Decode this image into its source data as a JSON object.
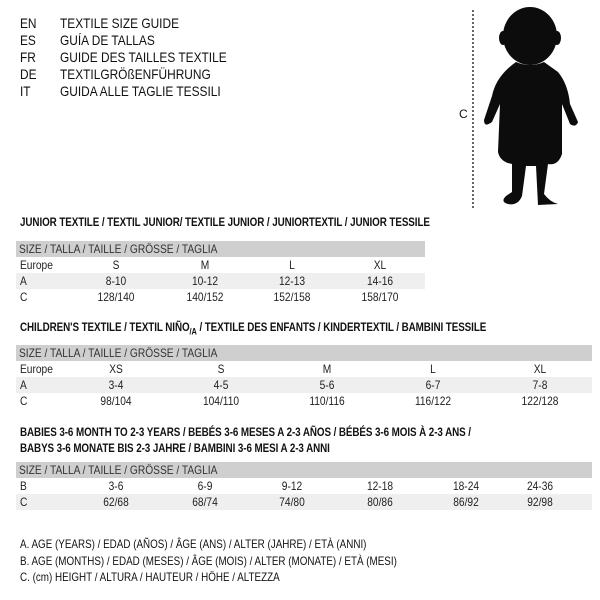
{
  "title_lines": [
    {
      "code": "EN",
      "text": "TEXTILE SIZE GUIDE"
    },
    {
      "code": "ES",
      "text": "GUÍA DE TALLAS"
    },
    {
      "code": "FR",
      "text": "GUIDE DES TAILLES TEXTILE"
    },
    {
      "code": "DE",
      "text": "TEXTILGRÖßENFÜHRUNG"
    },
    {
      "code": "IT",
      "text": "GUIDA ALLE TAGLIE TESSILI"
    }
  ],
  "figure": {
    "label": "C",
    "icon": "child-silhouette-icon"
  },
  "size_header": "SIZE / TALLA / TAILLE / GRÖSSE / TAGLIA",
  "junior": {
    "title": "JUNIOR TEXTILE / TEXTIL JUNIOR/ TEXTILE JUNIOR / JUNIORTEXTIL / JUNIOR TESSILE",
    "rows": [
      {
        "label": "Europe",
        "values": [
          "S",
          "M",
          "L",
          "XL"
        ]
      },
      {
        "label": "A",
        "values": [
          "8-10",
          "10-12",
          "12-13",
          "14-16"
        ]
      },
      {
        "label": "C",
        "values": [
          "128/140",
          "140/152",
          "152/158",
          "158/170"
        ]
      }
    ]
  },
  "children": {
    "title_a": "CHILDREN'S TEXTILE / TEXTIL NIÑO",
    "title_sub": "/A",
    "title_b": " / TEXTILE DES ENFANTS / KINDERTEXTIL / BAMBINI TESSILE",
    "rows": [
      {
        "label": "Europe",
        "values": [
          "XS",
          "S",
          "M",
          "L",
          "XL"
        ]
      },
      {
        "label": "A",
        "values": [
          "3-4",
          "4-5",
          "5-6",
          "6-7",
          "7-8"
        ]
      },
      {
        "label": "C",
        "values": [
          "98/104",
          "104/110",
          "110/116",
          "116/122",
          "122/128"
        ]
      }
    ]
  },
  "babies": {
    "title_1": "BABIES 3-6 MONTH TO 2-3 YEARS / BEBÉS 3-6 MESES A 2-3 AÑOS / BÉBÉS 3-6 MOIS À 2-3 ANS /",
    "title_2": "BABYS 3-6 MONATE BIS 2-3 JAHRE / BAMBINI 3-6 MESI A 2-3 ANNI",
    "rows": [
      {
        "label": "B",
        "values": [
          "3-6",
          "6-9",
          "9-12",
          "12-18",
          "18-24",
          "24-36"
        ]
      },
      {
        "label": "C",
        "values": [
          "62/68",
          "68/74",
          "74/80",
          "80/86",
          "86/92",
          "92/98"
        ]
      }
    ]
  },
  "legend": [
    "A. AGE (YEARS) / EDAD (AÑOS) / ÂGE (ANS) / ALTER (JAHRE) / ETÀ (ANNI)",
    "B. AGE (MONTHS) / EDAD (MESES) / ÂGE (MOIS) / ALTER (MONATE) / ETÀ (MESI)",
    "C. (cm) HEIGHT / ALTURA / HAUTEUR / HÖHE / ALTEZZA"
  ],
  "colors": {
    "header_bg": "#cfcfcf",
    "shaded_row": "#efefef"
  }
}
